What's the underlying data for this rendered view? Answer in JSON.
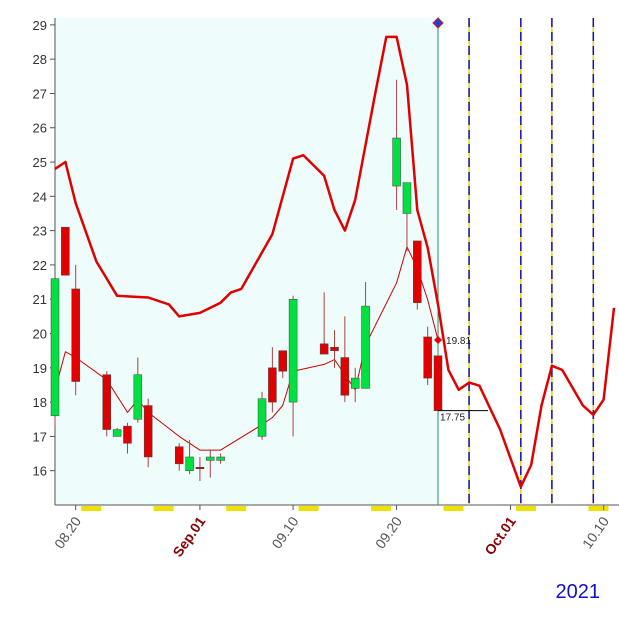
{
  "chart_data": {
    "type": "candlestick",
    "year": "2021",
    "xlim": [
      "2021-08-18",
      "2021-10-11"
    ],
    "ylim": [
      15,
      29.2
    ],
    "yticks": [
      16,
      17,
      18,
      19,
      20,
      21,
      22,
      23,
      24,
      25,
      26,
      27,
      28,
      29
    ],
    "xticks": [
      {
        "value": "2021-08-20",
        "label": "08.20",
        "color": "#555555"
      },
      {
        "value": "2021-09-01",
        "label": "Sep.01",
        "color": "#8b0000"
      },
      {
        "value": "2021-09-10",
        "label": "09.10",
        "color": "#555555"
      },
      {
        "value": "2021-09-20",
        "label": "09.20",
        "color": "#555555"
      },
      {
        "value": "2021-10-01",
        "label": "Oct.01",
        "color": "#8b0000"
      },
      {
        "value": "2021-10-10",
        "label": "10.10",
        "color": "#555555"
      }
    ],
    "up_color": "#00e040",
    "down_color": "#e00000",
    "candles": {
      "x": [
        "2021-08-18",
        "2021-08-19",
        "2021-08-20",
        "2021-08-23",
        "2021-08-24",
        "2021-08-25",
        "2021-08-26",
        "2021-08-27",
        "2021-08-30",
        "2021-08-31",
        "2021-09-01",
        "2021-09-02",
        "2021-09-03",
        "2021-09-07",
        "2021-09-08",
        "2021-09-09",
        "2021-09-10",
        "2021-09-13",
        "2021-09-14",
        "2021-09-15",
        "2021-09-16",
        "2021-09-17",
        "2021-09-20",
        "2021-09-21",
        "2021-09-22",
        "2021-09-23",
        "2021-09-24"
      ],
      "open": [
        17.6,
        23.1,
        21.3,
        18.8,
        17.0,
        17.3,
        17.5,
        17.9,
        16.7,
        16.0,
        16.1,
        16.3,
        16.3,
        17.0,
        19.0,
        19.5,
        18.0,
        19.7,
        19.6,
        19.3,
        18.4,
        18.4,
        24.3,
        23.5,
        22.7,
        19.9,
        19.35
      ],
      "high": [
        21.6,
        23.1,
        22.0,
        18.9,
        17.25,
        17.4,
        19.3,
        18.1,
        16.8,
        16.9,
        16.4,
        16.6,
        16.5,
        18.3,
        19.6,
        19.5,
        21.1,
        21.2,
        20.1,
        20.5,
        19.0,
        21.5,
        27.4,
        24.4,
        22.7,
        20.2,
        19.35
      ],
      "low": [
        17.3,
        21.7,
        18.2,
        17.0,
        17.0,
        16.5,
        17.4,
        16.1,
        16.0,
        15.9,
        15.7,
        15.8,
        16.2,
        16.9,
        17.7,
        18.7,
        17.0,
        19.4,
        19.0,
        18.0,
        18.0,
        18.4,
        23.6,
        22.4,
        20.7,
        18.5,
        17.75
      ],
      "close": [
        21.6,
        21.7,
        18.6,
        17.2,
        17.2,
        16.8,
        18.8,
        16.4,
        16.2,
        16.4,
        16.1,
        16.4,
        16.4,
        18.1,
        18.0,
        18.9,
        21.0,
        19.4,
        19.5,
        18.2,
        18.7,
        20.8,
        25.7,
        24.4,
        20.9,
        18.7,
        17.75
      ],
      "label_last": true
    },
    "series": [
      {
        "color": "#e00000",
        "width": 2.5,
        "x": [
          "2021-08-18",
          "2021-08-19",
          "2021-08-20",
          "2021-08-22",
          "2021-08-24",
          "2021-08-27",
          "2021-08-29",
          "2021-08-30",
          "2021-09-01",
          "2021-09-03",
          "2021-09-04",
          "2021-09-05",
          "2021-09-08",
          "2021-09-10",
          "2021-09-11",
          "2021-09-13",
          "2021-09-14",
          "2021-09-15",
          "2021-09-16",
          "2021-09-18",
          "2021-09-19",
          "2021-09-20",
          "2021-09-21",
          "2021-09-22",
          "2021-09-23",
          "2021-09-24",
          "2021-09-25",
          "2021-09-26",
          "2021-09-27",
          "2021-09-28",
          "2021-09-30",
          "2021-10-02",
          "2021-10-03",
          "2021-10-04",
          "2021-10-05",
          "2021-10-06",
          "2021-10-08",
          "2021-10-09",
          "2021-10-10",
          "2021-10-11"
        ],
        "values": [
          24.8,
          25.0,
          23.8,
          22.1,
          21.1,
          21.05,
          20.85,
          20.5,
          20.6,
          20.9,
          21.2,
          21.3,
          22.9,
          25.1,
          25.2,
          24.6,
          23.6,
          23.0,
          23.9,
          27.1,
          28.65,
          28.65,
          27.25,
          23.6,
          22.5,
          20.85,
          18.94,
          18.36,
          18.57,
          18.48,
          17.2,
          15.53,
          16.17,
          17.9,
          19.06,
          18.94,
          17.9,
          17.63,
          18.07,
          20.75
        ],
        "label_last": false
      },
      {
        "color": "#d00000",
        "width": 1,
        "x": [
          "2021-08-18",
          "2021-08-19",
          "2021-08-20",
          "2021-08-23",
          "2021-08-25",
          "2021-08-26",
          "2021-08-27",
          "2021-08-30",
          "2021-09-01",
          "2021-09-03",
          "2021-09-07",
          "2021-09-08",
          "2021-09-09",
          "2021-09-10",
          "2021-09-13",
          "2021-09-14",
          "2021-09-15",
          "2021-09-16",
          "2021-09-17",
          "2021-09-20",
          "2021-09-21",
          "2021-09-22",
          "2021-09-23",
          "2021-09-24"
        ],
        "values": [
          18.35,
          19.47,
          19.3,
          18.65,
          17.7,
          18.07,
          17.7,
          17.0,
          16.6,
          16.6,
          17.34,
          17.55,
          17.9,
          18.9,
          19.1,
          19.24,
          18.8,
          18.36,
          19.67,
          21.48,
          22.53,
          21.9,
          20.98,
          19.81
        ],
        "label_last": true
      }
    ],
    "cycle_dates": [
      "2021-09-27",
      "2021-10-02",
      "2021-10-05",
      "2021-10-09"
    ]
  }
}
